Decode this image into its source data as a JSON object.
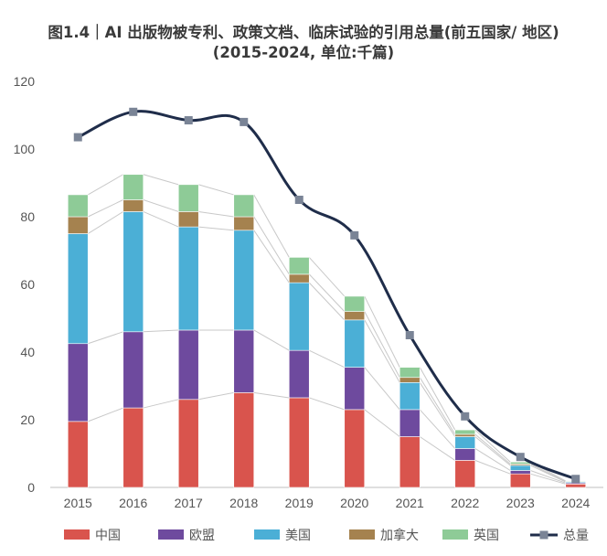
{
  "chart_data": {
    "type": "bar",
    "title": "图1.4｜AI 出版物被专利、政策文档、临床试验的引用总量(前五国家/ 地区)",
    "subtitle": "(2015-2024, 单位:千篇)",
    "categories": [
      "2015",
      "2016",
      "2017",
      "2018",
      "2019",
      "2020",
      "2021",
      "2022",
      "2023",
      "2024"
    ],
    "ylim": [
      0,
      120
    ],
    "yticks": [
      "0",
      "20",
      "40",
      "60",
      "80",
      "100",
      "120"
    ],
    "stacked": true,
    "series": [
      {
        "name": "中国",
        "color": "#d9544d",
        "values": [
          19.5,
          23.5,
          26.0,
          28.0,
          26.5,
          23.0,
          15.0,
          8.0,
          4.0,
          1.0
        ]
      },
      {
        "name": "欧盟",
        "color": "#6e4a9e",
        "values": [
          23.0,
          22.5,
          20.5,
          18.5,
          14.0,
          12.5,
          8.0,
          3.5,
          1.0,
          0.3
        ]
      },
      {
        "name": "美国",
        "color": "#4bafd6",
        "values": [
          32.5,
          35.5,
          30.5,
          29.5,
          20.0,
          14.0,
          8.0,
          3.5,
          1.5,
          0.3
        ]
      },
      {
        "name": "加拿大",
        "color": "#a5824f",
        "values": [
          5.0,
          3.5,
          4.5,
          4.0,
          2.5,
          2.5,
          1.5,
          0.7,
          0.4,
          0.1
        ]
      },
      {
        "name": "英国",
        "color": "#8ecb97",
        "values": [
          6.5,
          7.5,
          8.0,
          6.5,
          5.0,
          4.5,
          3.0,
          1.3,
          0.6,
          0.2
        ]
      }
    ],
    "total": {
      "name": "总量",
      "color": "#1f2d4a",
      "marker_color": "#7a8496",
      "values": [
        103.5,
        111.0,
        108.5,
        108.0,
        85.0,
        74.5,
        45.0,
        21.0,
        9.0,
        2.5
      ]
    },
    "grid": false,
    "legend": "bottom"
  }
}
